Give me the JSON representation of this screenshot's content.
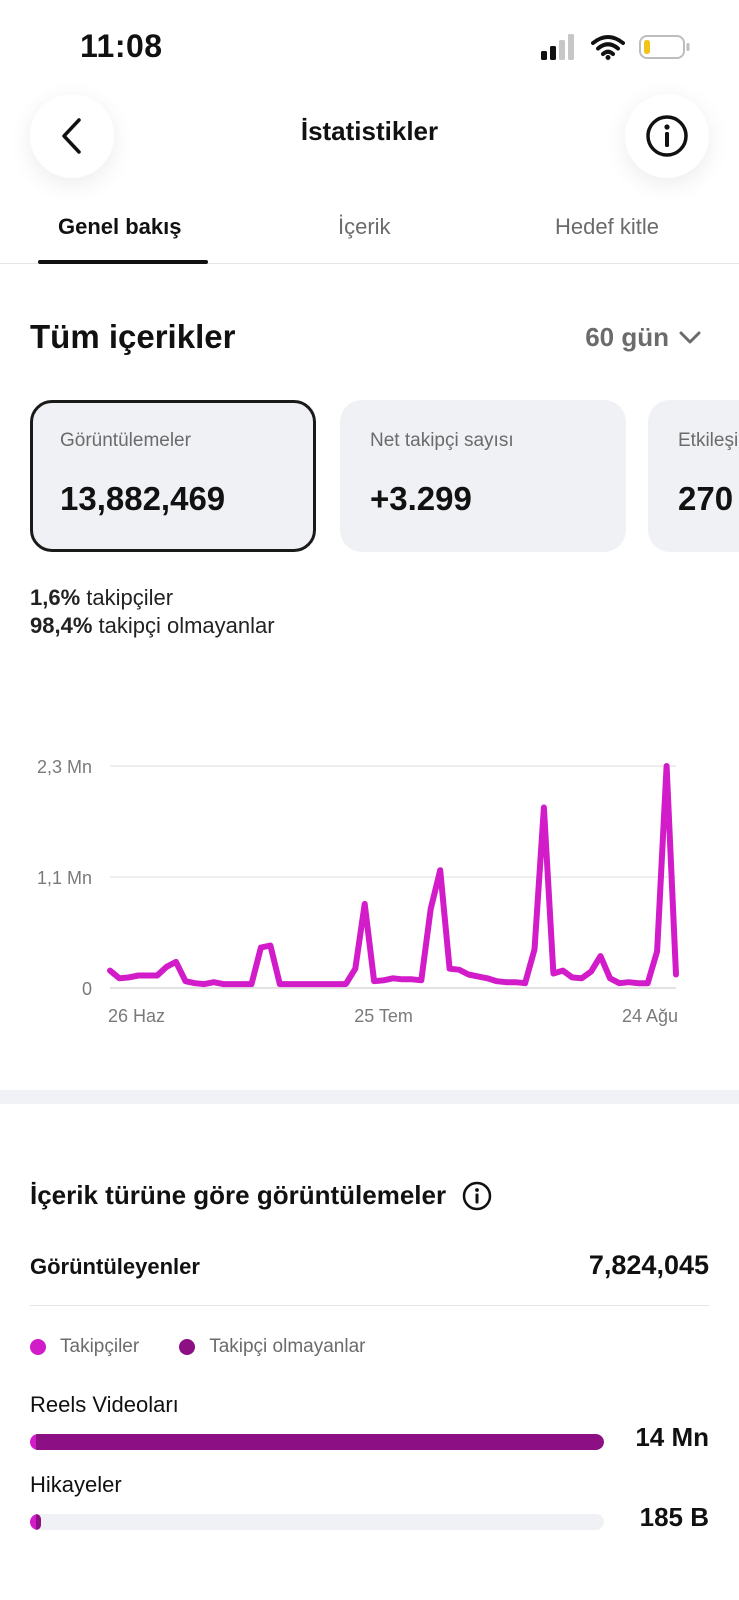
{
  "status_bar": {
    "time": "11:08"
  },
  "header": {
    "title": "İstatistikler",
    "back_icon": "chevron-left-icon",
    "info_icon": "info-icon"
  },
  "tabs": [
    {
      "label": "Genel bakış",
      "active": true
    },
    {
      "label": "İçerik",
      "active": false
    },
    {
      "label": "Hedef kitle",
      "active": false
    }
  ],
  "section": {
    "title": "Tüm içerikler",
    "range": "60 gün"
  },
  "cards": [
    {
      "label": "Görüntülemeler",
      "value": "13,882,469",
      "selected": true
    },
    {
      "label": "Net takipçi sayısı",
      "value": "+3.299",
      "selected": false
    },
    {
      "label": "Etkileşim",
      "value": "270",
      "selected": false
    }
  ],
  "audience_split": {
    "followers_pct": "1,6%",
    "followers_label": "takipçiler",
    "non_followers_pct": "98,4%",
    "non_followers_label": "takipçi olmayanlar"
  },
  "chart_data": {
    "type": "line",
    "y_tick_labels": [
      "0",
      "1,1 Mn",
      "2,3 Mn"
    ],
    "y_tick_values": [
      0,
      1.15,
      2.3
    ],
    "ylim": [
      0,
      2.3
    ],
    "x_tick_labels": [
      "26 Haz",
      "25 Tem",
      "24 Ağu"
    ],
    "x_tick_index": [
      0,
      29,
      59
    ],
    "series": [
      {
        "color": "#d21bc9",
        "values": [
          0.18,
          0.1,
          0.11,
          0.13,
          0.13,
          0.13,
          0.22,
          0.27,
          0.07,
          0.05,
          0.04,
          0.06,
          0.04,
          0.04,
          0.04,
          0.04,
          0.42,
          0.44,
          0.04,
          0.04,
          0.04,
          0.04,
          0.04,
          0.04,
          0.04,
          0.04,
          0.2,
          0.87,
          0.07,
          0.08,
          0.1,
          0.09,
          0.09,
          0.08,
          0.82,
          1.22,
          0.2,
          0.19,
          0.14,
          0.12,
          0.1,
          0.07,
          0.06,
          0.06,
          0.05,
          0.4,
          1.87,
          0.15,
          0.18,
          0.11,
          0.1,
          0.17,
          0.33,
          0.1,
          0.05,
          0.06,
          0.05,
          0.05,
          0.38,
          2.3,
          0.14
        ]
      }
    ],
    "grid": true,
    "legend": "none"
  },
  "content_type": {
    "title": "İçerik türüne göre görüntülemeler",
    "info_icon": "info-icon",
    "viewers_label": "Görüntüleyenler",
    "viewers_value": "7,824,045",
    "legend": [
      {
        "label": "Takipçiler",
        "color": "#d21bc9"
      },
      {
        "label": "Takipçi olmayanlar",
        "color": "#8c0f84"
      }
    ],
    "bars": [
      {
        "label": "Reels Videoları",
        "value": "14 Mn",
        "total_fraction": 1.0,
        "followers_fraction": 0.01
      },
      {
        "label": "Hikayeler",
        "value": "185 B",
        "total_fraction": 0.02,
        "followers_fraction": 0.5
      }
    ]
  }
}
